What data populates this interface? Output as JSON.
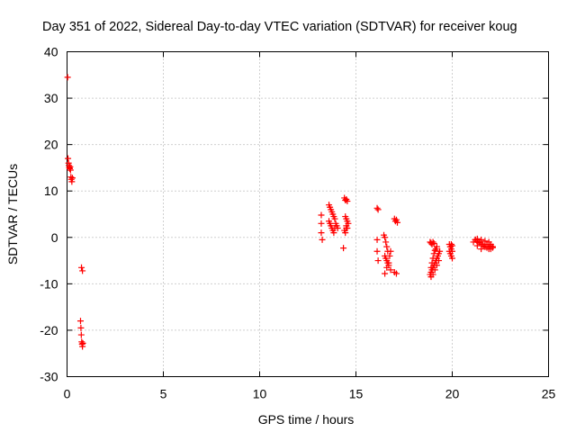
{
  "chart_data": {
    "type": "scatter",
    "title": "Day 351 of 2022, Sidereal Day-to-day VTEC variation (SDTVAR) for receiver koug",
    "xlabel": "GPS time / hours",
    "ylabel": "SDTVAR / TECUs",
    "xlim": [
      0,
      25
    ],
    "ylim": [
      -30,
      40
    ],
    "xticks": [
      0,
      5,
      10,
      15,
      20,
      25
    ],
    "yticks": [
      -30,
      -20,
      -10,
      0,
      10,
      20,
      30,
      40
    ],
    "grid": true,
    "marker": "+",
    "color": "#ff0000",
    "series": [
      {
        "name": "SDTVAR",
        "x": [
          0.03,
          0.05,
          0.08,
          0.1,
          0.12,
          0.14,
          0.16,
          0.18,
          0.2,
          0.22,
          0.25,
          0.28,
          0.75,
          0.8,
          0.7,
          0.72,
          0.74,
          0.76,
          0.78,
          0.8,
          0.82,
          13.2,
          13.2,
          13.2,
          13.25,
          13.6,
          13.65,
          13.7,
          13.75,
          13.8,
          13.85,
          13.9,
          13.6,
          13.65,
          13.7,
          13.75,
          13.8,
          13.85,
          13.9,
          13.95,
          14.0,
          14.05,
          14.4,
          14.45,
          14.5,
          14.55,
          14.45,
          14.5,
          14.55,
          14.6,
          14.5,
          14.55,
          14.4,
          14.45,
          14.5,
          14.35,
          16.1,
          16.15,
          16.1,
          16.1,
          16.15,
          16.45,
          16.5,
          16.55,
          16.6,
          16.65,
          16.5,
          16.55,
          16.6,
          16.65,
          16.7,
          16.75,
          16.8,
          16.5,
          16.6,
          16.7,
          16.8,
          17.0,
          17.05,
          17.1,
          17.15,
          17.0,
          17.1,
          18.85,
          18.9,
          18.95,
          19.0,
          19.05,
          18.85,
          18.9,
          18.95,
          19.0,
          19.05,
          19.1,
          19.15,
          19.2,
          19.25,
          19.3,
          19.35,
          18.9,
          19.0,
          19.1,
          19.2,
          19.3,
          18.9,
          18.95,
          19.0,
          19.05,
          19.1,
          19.15,
          19.2,
          19.85,
          19.9,
          19.95,
          20.0,
          19.9,
          19.95,
          20.0,
          19.85,
          19.9,
          19.95,
          20.0,
          21.1,
          21.2,
          21.3,
          21.4,
          21.5,
          21.6,
          21.7,
          21.8,
          21.9,
          22.0,
          22.1,
          21.2,
          21.3,
          21.4,
          21.5,
          21.6,
          21.7,
          21.8,
          21.9,
          22.0,
          22.1,
          21.3,
          21.5,
          21.7,
          21.9,
          22.0
        ],
        "y": [
          34.5,
          17.0,
          16.0,
          15.5,
          15.0,
          14.8,
          15.2,
          14.5,
          13.0,
          12.5,
          12.0,
          12.8,
          -6.5,
          -7.2,
          -18.0,
          -19.5,
          -21.0,
          -22.5,
          -23.0,
          -23.5,
          -22.8,
          4.8,
          3.0,
          1.0,
          -0.5,
          7.0,
          6.5,
          6.0,
          5.5,
          5.0,
          4.5,
          4.0,
          3.5,
          3.0,
          2.5,
          2.0,
          1.5,
          1.0,
          2.0,
          3.0,
          2.5,
          2.0,
          8.5,
          8.0,
          8.2,
          7.8,
          4.5,
          4.0,
          3.5,
          3.0,
          2.5,
          2.0,
          1.5,
          1.0,
          2.0,
          -2.3,
          6.3,
          6.0,
          -0.5,
          -3.0,
          -5.0,
          0.5,
          0.0,
          -1.0,
          -2.0,
          -3.0,
          -4.0,
          -4.5,
          -5.0,
          -5.5,
          -6.0,
          -4.0,
          -3.0,
          -7.8,
          -6.5,
          -5.5,
          -7.0,
          4.0,
          3.5,
          3.8,
          3.2,
          -7.5,
          -7.8,
          -1.0,
          -1.2,
          -1.5,
          -1.0,
          -1.3,
          -8.0,
          -7.5,
          -7.0,
          -6.5,
          -6.0,
          -5.5,
          -5.0,
          -4.5,
          -4.0,
          -3.5,
          -3.0,
          -8.5,
          -8.0,
          -7.0,
          -6.0,
          -5.0,
          -6.5,
          -5.5,
          -4.5,
          -3.5,
          -2.8,
          -2.5,
          -2.0,
          -1.5,
          -2.0,
          -2.5,
          -3.0,
          -3.5,
          -4.0,
          -4.5,
          -3.0,
          -2.0,
          -1.5,
          -1.8,
          -1.0,
          -0.5,
          -0.8,
          -1.2,
          -1.5,
          -1.8,
          -2.0,
          -2.2,
          -2.0,
          -1.8,
          -2.2,
          -0.5,
          -0.3,
          -1.0,
          -0.5,
          -1.5,
          -0.8,
          -1.5,
          -1.0,
          -2.5,
          -2.0,
          -1.8,
          -2.5,
          -2.0,
          -2.5,
          -1.5
        ]
      }
    ]
  }
}
